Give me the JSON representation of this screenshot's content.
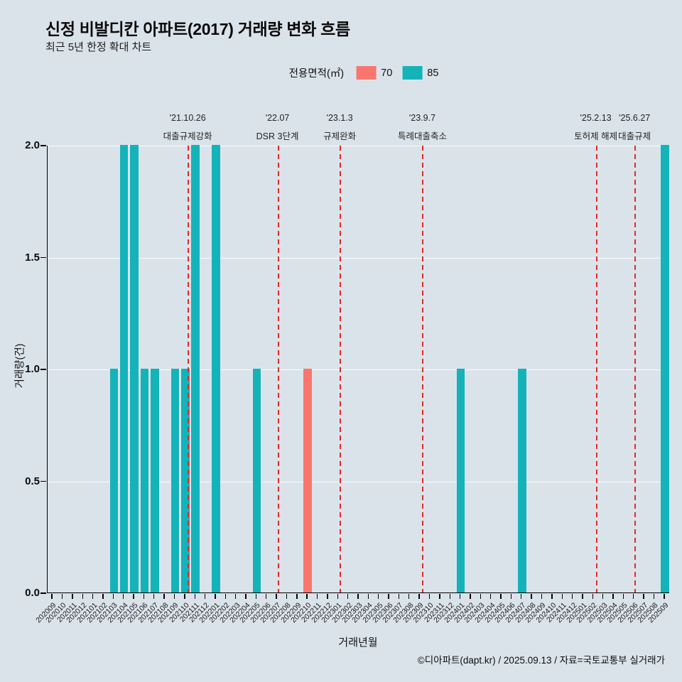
{
  "header": {
    "title": "신정 비발디칸 아파트(2017) 거래량 변화 흐름",
    "subtitle": "최근 5년 한정 확대 차트"
  },
  "legend": {
    "title": "전용면적(㎡)",
    "items": [
      {
        "label": "70",
        "color": "#f8766d"
      },
      {
        "label": "85",
        "color": "#14b3ba"
      }
    ]
  },
  "chart_data": {
    "type": "bar",
    "title": "신정 비발디칸 아파트(2017) 거래량 변화 흐름",
    "xlabel": "거래년월",
    "ylabel": "거래량(건)",
    "ylim": [
      0,
      2
    ],
    "grid": true,
    "legend_position": "top",
    "background_color": "#dbe3ea",
    "annotation_color": "#e02b2b",
    "yticks": [
      {
        "label": "0.0",
        "value": 0
      },
      {
        "label": "0.5",
        "value": 0.5
      },
      {
        "label": "1.0",
        "value": 1
      },
      {
        "label": "1.5",
        "value": 1.5
      },
      {
        "label": "2.0",
        "value": 2
      }
    ],
    "categories": [
      "202009",
      "202010",
      "202011",
      "202012",
      "202101",
      "202102",
      "202103",
      "202104",
      "202105",
      "202106",
      "202107",
      "202108",
      "202109",
      "202110",
      "202111",
      "202112",
      "202201",
      "202202",
      "202203",
      "202204",
      "202205",
      "202206",
      "202207",
      "202208",
      "202209",
      "202210",
      "202211",
      "202212",
      "202301",
      "202302",
      "202303",
      "202304",
      "202305",
      "202306",
      "202307",
      "202308",
      "202309",
      "202310",
      "202311",
      "202312",
      "202401",
      "202402",
      "202403",
      "202404",
      "202405",
      "202406",
      "202407",
      "202408",
      "202409",
      "202410",
      "202411",
      "202412",
      "202501",
      "202502",
      "202503",
      "202504",
      "202505",
      "202506",
      "202507",
      "202508",
      "202509"
    ],
    "series": [
      {
        "name": "70",
        "color": "#f8766d",
        "values": [
          0,
          0,
          0,
          0,
          0,
          0,
          0,
          0,
          0,
          0,
          0,
          0,
          0,
          0,
          0,
          0,
          0,
          0,
          0,
          0,
          0,
          0,
          0,
          0,
          0,
          1,
          0,
          0,
          0,
          0,
          0,
          0,
          0,
          0,
          0,
          0,
          0,
          0,
          0,
          0,
          0,
          0,
          0,
          0,
          0,
          0,
          0,
          0,
          0,
          0,
          0,
          0,
          0,
          0,
          0,
          0,
          0,
          0,
          0,
          0,
          0
        ]
      },
      {
        "name": "85",
        "color": "#14b3ba",
        "values": [
          0,
          0,
          0,
          0,
          0,
          0,
          1,
          2,
          2,
          1,
          1,
          0,
          1,
          1,
          2,
          0,
          2,
          0,
          0,
          0,
          1,
          0,
          0,
          0,
          0,
          0,
          0,
          0,
          0,
          0,
          0,
          0,
          0,
          0,
          0,
          0,
          0,
          0,
          0,
          0,
          1,
          0,
          0,
          0,
          0,
          0,
          1,
          0,
          0,
          0,
          0,
          0,
          0,
          0,
          0,
          0,
          0,
          0,
          0,
          0,
          2
        ]
      }
    ],
    "annotations": [
      {
        "date": "'21.10.26",
        "label": "대출규제강화",
        "x_index": 13.3
      },
      {
        "date": "'22.07",
        "label": "DSR 3단계",
        "x_index": 22.1
      },
      {
        "date": "'23.1.3",
        "label": "규제완화",
        "x_index": 28.2
      },
      {
        "date": "'23.9.7",
        "label": "특례대출축소",
        "x_index": 36.3
      },
      {
        "date": "'25.2.13",
        "label": "토허제 해제",
        "x_index": 53.3
      },
      {
        "date": "'25.6.27",
        "label": "대출규제",
        "x_index": 57.1
      }
    ]
  },
  "footer": {
    "credit": "©디아파트(dapt.kr) / 2025.09.13 / 자료=국토교통부 실거래가"
  }
}
